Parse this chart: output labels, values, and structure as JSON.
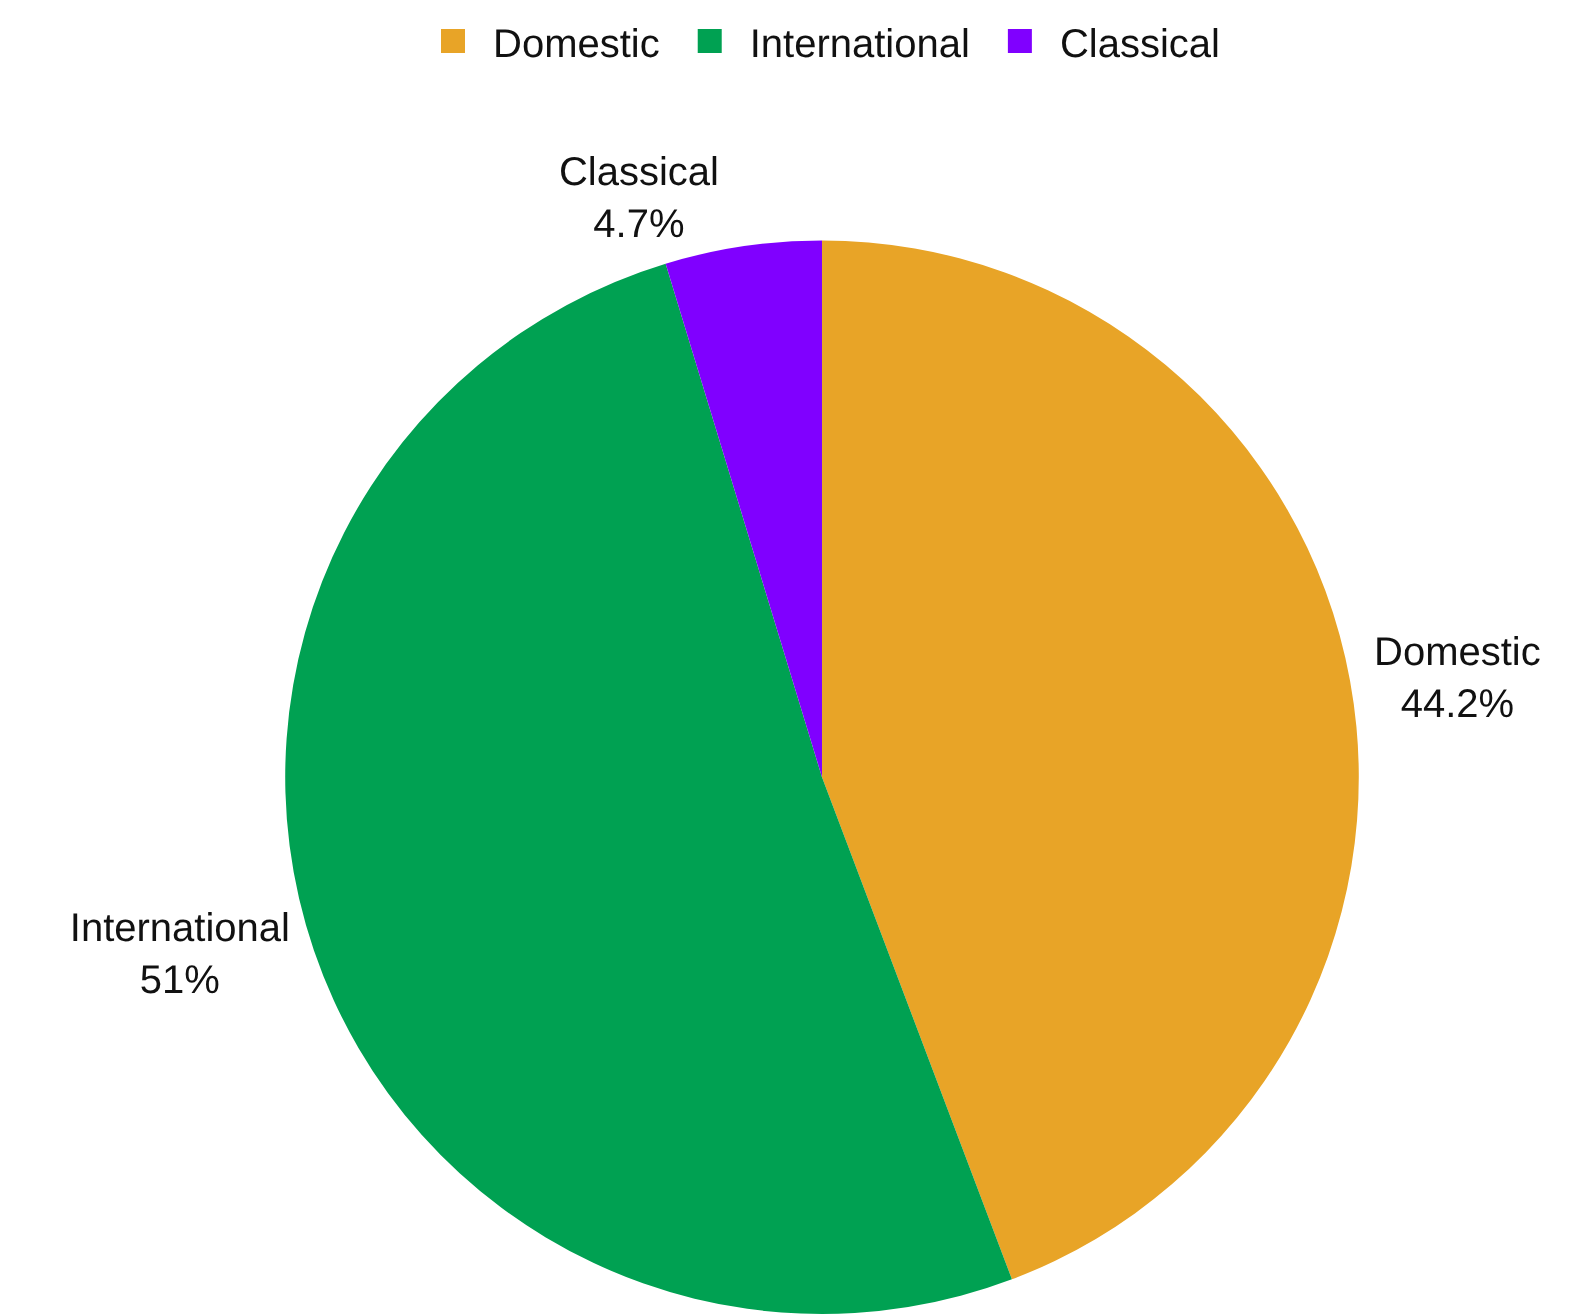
{
  "chart_data": {
    "type": "pie",
    "categories": [
      "Domestic",
      "International",
      "Classical"
    ],
    "values": [
      44.2,
      51,
      4.7
    ],
    "value_labels": [
      "44.2%",
      "51%",
      "4.7%"
    ],
    "colors": [
      "#e8a427",
      "#00a152",
      "#8000ff"
    ],
    "legend": "top"
  }
}
